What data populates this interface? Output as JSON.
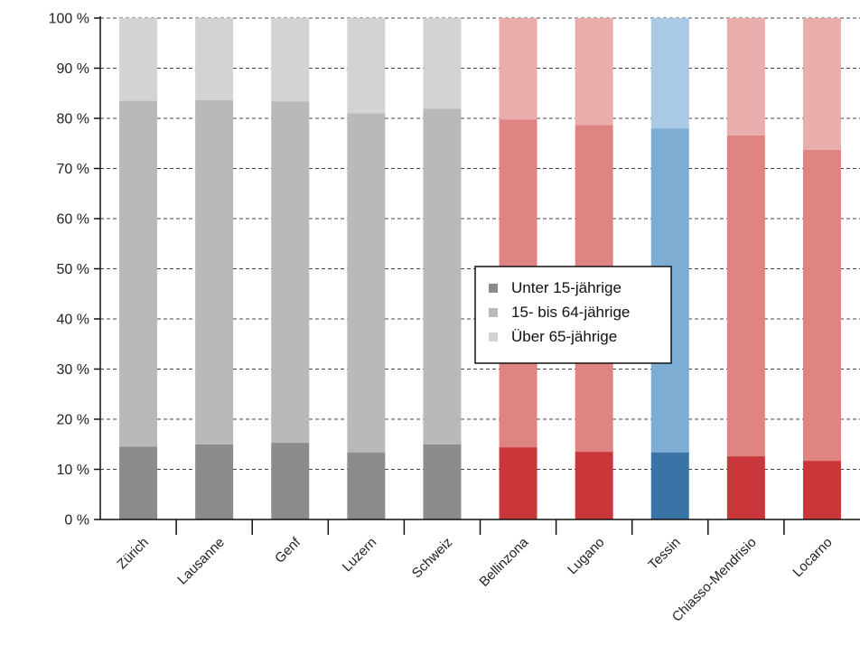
{
  "chart_data": {
    "type": "bar",
    "stacked": true,
    "normalized_percent": true,
    "ylim": [
      0,
      100
    ],
    "yticks": [
      0,
      10,
      20,
      30,
      40,
      50,
      60,
      70,
      80,
      90,
      100
    ],
    "ytick_suffix": " %",
    "grid": "horizontal-dashed",
    "legend_position": "center",
    "categories": [
      "Zürich",
      "Lausanne",
      "Genf",
      "Luzern",
      "Schweiz",
      "Bellinzona",
      "Lugano",
      "Tessin",
      "Chiasso-Mendrisio",
      "Locarno"
    ],
    "series": [
      {
        "name": "Unter 15-jährige",
        "values": [
          14.5,
          15.0,
          15.3,
          13.4,
          15.0,
          14.4,
          13.5,
          13.4,
          12.6,
          11.7
        ]
      },
      {
        "name": "15- bis 64-jährige",
        "values": [
          69.0,
          68.6,
          68.1,
          67.6,
          66.9,
          65.4,
          65.2,
          64.6,
          64.0,
          62.0
        ]
      },
      {
        "name": "Über 65-jährige",
        "values": [
          16.5,
          16.4,
          16.6,
          19.0,
          18.1,
          20.2,
          21.3,
          22.0,
          23.4,
          26.3
        ]
      }
    ],
    "category_palette": [
      "gray",
      "gray",
      "gray",
      "gray",
      "gray",
      "red",
      "red",
      "blue",
      "red",
      "red"
    ],
    "colors": {
      "gray": [
        "#8c8c8c",
        "#b9b9b9",
        "#d3d3d3"
      ],
      "red": [
        "#c9373a",
        "#de8583",
        "#e9adac"
      ],
      "blue": [
        "#3a74a6",
        "#7eadd4",
        "#a9c9e4"
      ]
    },
    "legend_colors": [
      "#8c8c8c",
      "#b9b9b9",
      "#d3d3d3"
    ]
  }
}
